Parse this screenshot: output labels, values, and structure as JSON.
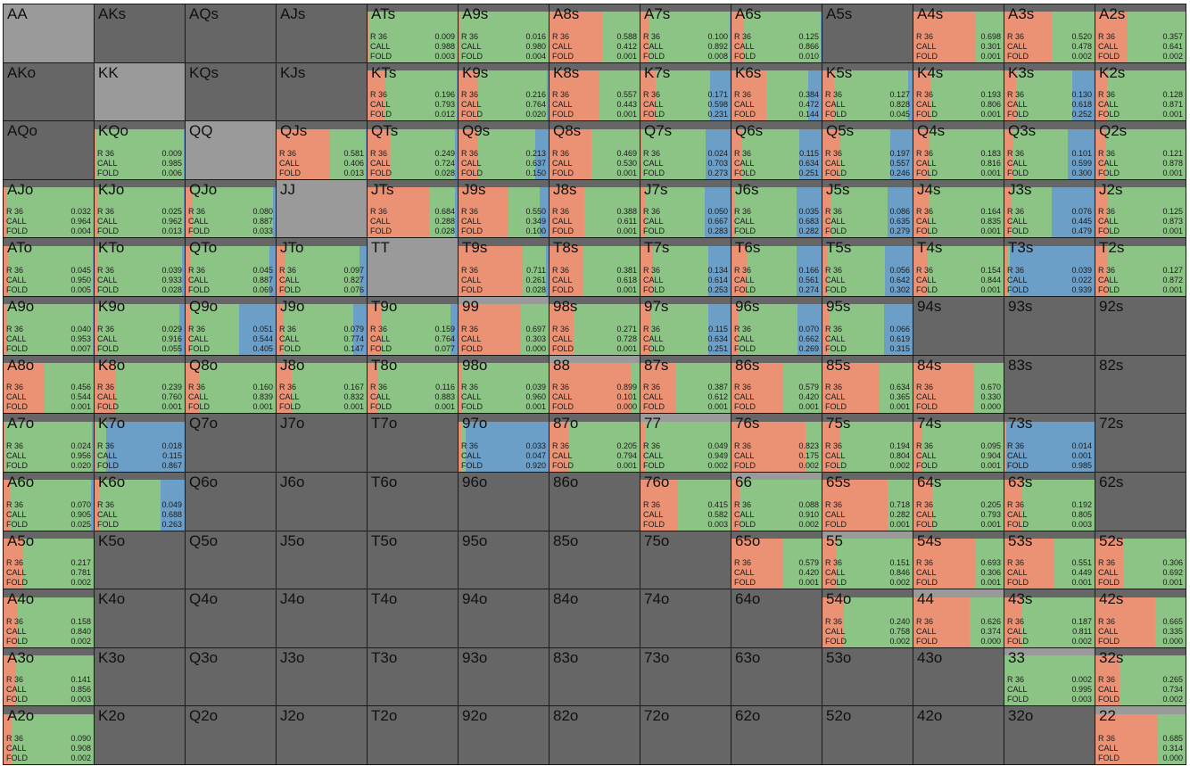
{
  "colors": {
    "raise": "#ec9274",
    "call": "#8cc485",
    "fold": "#6c9fc8",
    "empty": "#666666",
    "pair_empty": "#9a9a9a",
    "grid_line": "#1a1a1a",
    "text": "#111111"
  },
  "action_labels": [
    "R 36",
    "CALL",
    "FOLD"
  ],
  "grid": [
    [
      {
        "hand": "AA"
      },
      {
        "hand": "AKs"
      },
      {
        "hand": "AQs"
      },
      {
        "hand": "AJs"
      },
      {
        "hand": "ATs",
        "r": "0.009",
        "c": "0.988",
        "f": "0.003"
      },
      {
        "hand": "A9s",
        "r": "0.016",
        "c": "0.980",
        "f": "0.004"
      },
      {
        "hand": "A8s",
        "r": "0.588",
        "c": "0.412",
        "f": "0.001"
      },
      {
        "hand": "A7s",
        "r": "0.100",
        "c": "0.892",
        "f": "0.008"
      },
      {
        "hand": "A6s",
        "r": "0.125",
        "c": "0.866",
        "f": "0.010"
      },
      {
        "hand": "A5s"
      },
      {
        "hand": "A4s",
        "r": "0.698",
        "c": "0.301",
        "f": "0.001"
      },
      {
        "hand": "A3s",
        "r": "0.520",
        "c": "0.478",
        "f": "0.002"
      },
      {
        "hand": "A2s",
        "r": "0.357",
        "c": "0.641",
        "f": "0.002"
      }
    ],
    [
      {
        "hand": "AKo"
      },
      {
        "hand": "KK"
      },
      {
        "hand": "KQs"
      },
      {
        "hand": "KJs"
      },
      {
        "hand": "KTs",
        "r": "0.196",
        "c": "0.793",
        "f": "0.012"
      },
      {
        "hand": "K9s",
        "r": "0.216",
        "c": "0.764",
        "f": "0.020"
      },
      {
        "hand": "K8s",
        "r": "0.557",
        "c": "0.443",
        "f": "0.001"
      },
      {
        "hand": "K7s",
        "r": "0.171",
        "c": "0.598",
        "f": "0.231"
      },
      {
        "hand": "K6s",
        "r": "0.384",
        "c": "0.472",
        "f": "0.144"
      },
      {
        "hand": "K5s",
        "r": "0.127",
        "c": "0.828",
        "f": "0.045"
      },
      {
        "hand": "K4s",
        "r": "0.193",
        "c": "0.806",
        "f": "0.001"
      },
      {
        "hand": "K3s",
        "r": "0.130",
        "c": "0.618",
        "f": "0.252"
      },
      {
        "hand": "K2s",
        "r": "0.128",
        "c": "0.871",
        "f": "0.001"
      }
    ],
    [
      {
        "hand": "AQo"
      },
      {
        "hand": "KQo",
        "r": "0.009",
        "c": "0.985",
        "f": "0.006"
      },
      {
        "hand": "QQ"
      },
      {
        "hand": "QJs",
        "r": "0.581",
        "c": "0.406",
        "f": "0.013"
      },
      {
        "hand": "QTs",
        "r": "0.249",
        "c": "0.724",
        "f": "0.028"
      },
      {
        "hand": "Q9s",
        "r": "0.213",
        "c": "0.637",
        "f": "0.150"
      },
      {
        "hand": "Q8s",
        "r": "0.469",
        "c": "0.530",
        "f": "0.001"
      },
      {
        "hand": "Q7s",
        "r": "0.024",
        "c": "0.703",
        "f": "0.273"
      },
      {
        "hand": "Q6s",
        "r": "0.115",
        "c": "0.634",
        "f": "0.251"
      },
      {
        "hand": "Q5s",
        "r": "0.197",
        "c": "0.557",
        "f": "0.246"
      },
      {
        "hand": "Q4s",
        "r": "0.183",
        "c": "0.816",
        "f": "0.001"
      },
      {
        "hand": "Q3s",
        "r": "0.101",
        "c": "0.599",
        "f": "0.300"
      },
      {
        "hand": "Q2s",
        "r": "0.121",
        "c": "0.878",
        "f": "0.001"
      }
    ],
    [
      {
        "hand": "AJo",
        "r": "0.032",
        "c": "0.964",
        "f": "0.004"
      },
      {
        "hand": "KJo",
        "r": "0.025",
        "c": "0.962",
        "f": "0.013"
      },
      {
        "hand": "QJo",
        "r": "0.080",
        "c": "0.887",
        "f": "0.033"
      },
      {
        "hand": "JJ"
      },
      {
        "hand": "JTs",
        "r": "0.684",
        "c": "0.288",
        "f": "0.028"
      },
      {
        "hand": "J9s",
        "r": "0.550",
        "c": "0.349",
        "f": "0.100"
      },
      {
        "hand": "J8s",
        "r": "0.388",
        "c": "0.611",
        "f": "0.001"
      },
      {
        "hand": "J7s",
        "r": "0.050",
        "c": "0.667",
        "f": "0.283"
      },
      {
        "hand": "J6s",
        "r": "0.035",
        "c": "0.683",
        "f": "0.282"
      },
      {
        "hand": "J5s",
        "r": "0.086",
        "c": "0.635",
        "f": "0.279"
      },
      {
        "hand": "J4s",
        "r": "0.164",
        "c": "0.835",
        "f": "0.001"
      },
      {
        "hand": "J3s",
        "r": "0.076",
        "c": "0.445",
        "f": "0.479"
      },
      {
        "hand": "J2s",
        "r": "0.125",
        "c": "0.873",
        "f": "0.001"
      }
    ],
    [
      {
        "hand": "ATo",
        "r": "0.045",
        "c": "0.950",
        "f": "0.005"
      },
      {
        "hand": "KTo",
        "r": "0.039",
        "c": "0.933",
        "f": "0.028"
      },
      {
        "hand": "QTo",
        "r": "0.045",
        "c": "0.887",
        "f": "0.069"
      },
      {
        "hand": "JTo",
        "r": "0.097",
        "c": "0.827",
        "f": "0.076"
      },
      {
        "hand": "TT"
      },
      {
        "hand": "T9s",
        "r": "0.711",
        "c": "0.261",
        "f": "0.028"
      },
      {
        "hand": "T8s",
        "r": "0.381",
        "c": "0.618",
        "f": "0.001"
      },
      {
        "hand": "T7s",
        "r": "0.134",
        "c": "0.614",
        "f": "0.253"
      },
      {
        "hand": "T6s",
        "r": "0.166",
        "c": "0.561",
        "f": "0.274"
      },
      {
        "hand": "T5s",
        "r": "0.056",
        "c": "0.642",
        "f": "0.302"
      },
      {
        "hand": "T4s",
        "r": "0.154",
        "c": "0.844",
        "f": "0.001"
      },
      {
        "hand": "T3s",
        "r": "0.039",
        "c": "0.022",
        "f": "0.939"
      },
      {
        "hand": "T2s",
        "r": "0.127",
        "c": "0.872",
        "f": "0.001"
      }
    ],
    [
      {
        "hand": "A9o",
        "r": "0.040",
        "c": "0.953",
        "f": "0.007"
      },
      {
        "hand": "K9o",
        "r": "0.029",
        "c": "0.916",
        "f": "0.055"
      },
      {
        "hand": "Q9o",
        "r": "0.051",
        "c": "0.544",
        "f": "0.405"
      },
      {
        "hand": "J9o",
        "r": "0.079",
        "c": "0.774",
        "f": "0.147"
      },
      {
        "hand": "T9o",
        "r": "0.159",
        "c": "0.764",
        "f": "0.077"
      },
      {
        "hand": "99",
        "r": "0.697",
        "c": "0.303",
        "f": "0.000"
      },
      {
        "hand": "98s",
        "r": "0.271",
        "c": "0.728",
        "f": "0.001"
      },
      {
        "hand": "97s",
        "r": "0.115",
        "c": "0.634",
        "f": "0.251"
      },
      {
        "hand": "96s",
        "r": "0.070",
        "c": "0.662",
        "f": "0.269"
      },
      {
        "hand": "95s",
        "r": "0.066",
        "c": "0.619",
        "f": "0.315"
      },
      {
        "hand": "94s"
      },
      {
        "hand": "93s"
      },
      {
        "hand": "92s"
      }
    ],
    [
      {
        "hand": "A8o",
        "r": "0.456",
        "c": "0.544",
        "f": "0.001"
      },
      {
        "hand": "K8o",
        "r": "0.239",
        "c": "0.760",
        "f": "0.001"
      },
      {
        "hand": "Q8o",
        "r": "0.160",
        "c": "0.839",
        "f": "0.001"
      },
      {
        "hand": "J8o",
        "r": "0.167",
        "c": "0.832",
        "f": "0.001"
      },
      {
        "hand": "T8o",
        "r": "0.116",
        "c": "0.883",
        "f": "0.001"
      },
      {
        "hand": "98o",
        "r": "0.039",
        "c": "0.960",
        "f": "0.001"
      },
      {
        "hand": "88",
        "r": "0.899",
        "c": "0.101",
        "f": "0.000"
      },
      {
        "hand": "87s",
        "r": "0.387",
        "c": "0.612",
        "f": "0.001"
      },
      {
        "hand": "86s",
        "r": "0.579",
        "c": "0.420",
        "f": "0.001"
      },
      {
        "hand": "85s",
        "r": "0.634",
        "c": "0.365",
        "f": "0.001"
      },
      {
        "hand": "84s",
        "r": "0.670",
        "c": "0.330",
        "f": "0.000"
      },
      {
        "hand": "83s"
      },
      {
        "hand": "82s"
      }
    ],
    [
      {
        "hand": "A7o",
        "r": "0.024",
        "c": "0.956",
        "f": "0.020"
      },
      {
        "hand": "K7o",
        "r": "0.018",
        "c": "0.115",
        "f": "0.867"
      },
      {
        "hand": "Q7o"
      },
      {
        "hand": "J7o"
      },
      {
        "hand": "T7o"
      },
      {
        "hand": "97o",
        "r": "0.033",
        "c": "0.047",
        "f": "0.920"
      },
      {
        "hand": "87o",
        "r": "0.205",
        "c": "0.794",
        "f": "0.001"
      },
      {
        "hand": "77",
        "r": "0.049",
        "c": "0.949",
        "f": "0.002"
      },
      {
        "hand": "76s",
        "r": "0.823",
        "c": "0.175",
        "f": "0.002"
      },
      {
        "hand": "75s",
        "r": "0.194",
        "c": "0.804",
        "f": "0.002"
      },
      {
        "hand": "74s",
        "r": "0.095",
        "c": "0.904",
        "f": "0.001"
      },
      {
        "hand": "73s",
        "r": "0.014",
        "c": "0.001",
        "f": "0.985"
      },
      {
        "hand": "72s"
      }
    ],
    [
      {
        "hand": "A6o",
        "r": "0.070",
        "c": "0.905",
        "f": "0.025"
      },
      {
        "hand": "K6o",
        "r": "0.049",
        "c": "0.688",
        "f": "0.263"
      },
      {
        "hand": "Q6o"
      },
      {
        "hand": "J6o"
      },
      {
        "hand": "T6o"
      },
      {
        "hand": "96o"
      },
      {
        "hand": "86o"
      },
      {
        "hand": "76o",
        "r": "0.415",
        "c": "0.582",
        "f": "0.003"
      },
      {
        "hand": "66",
        "r": "0.088",
        "c": "0.910",
        "f": "0.002"
      },
      {
        "hand": "65s",
        "r": "0.718",
        "c": "0.282",
        "f": "0.001"
      },
      {
        "hand": "64s",
        "r": "0.205",
        "c": "0.793",
        "f": "0.001"
      },
      {
        "hand": "63s",
        "r": "0.192",
        "c": "0.805",
        "f": "0.003"
      },
      {
        "hand": "62s"
      }
    ],
    [
      {
        "hand": "A5o",
        "r": "0.217",
        "c": "0.781",
        "f": "0.002"
      },
      {
        "hand": "K5o"
      },
      {
        "hand": "Q5o"
      },
      {
        "hand": "J5o"
      },
      {
        "hand": "T5o"
      },
      {
        "hand": "95o"
      },
      {
        "hand": "85o"
      },
      {
        "hand": "75o"
      },
      {
        "hand": "65o",
        "r": "0.579",
        "c": "0.420",
        "f": "0.001"
      },
      {
        "hand": "55",
        "r": "0.151",
        "c": "0.846",
        "f": "0.002"
      },
      {
        "hand": "54s",
        "r": "0.693",
        "c": "0.306",
        "f": "0.001"
      },
      {
        "hand": "53s",
        "r": "0.551",
        "c": "0.449",
        "f": "0.001"
      },
      {
        "hand": "52s",
        "r": "0.306",
        "c": "0.692",
        "f": "0.001"
      }
    ],
    [
      {
        "hand": "A4o",
        "r": "0.158",
        "c": "0.840",
        "f": "0.002"
      },
      {
        "hand": "K4o"
      },
      {
        "hand": "Q4o"
      },
      {
        "hand": "J4o"
      },
      {
        "hand": "T4o"
      },
      {
        "hand": "94o"
      },
      {
        "hand": "84o"
      },
      {
        "hand": "74o"
      },
      {
        "hand": "64o"
      },
      {
        "hand": "54o",
        "r": "0.240",
        "c": "0.758",
        "f": "0.002"
      },
      {
        "hand": "44",
        "r": "0.626",
        "c": "0.374",
        "f": "0.000"
      },
      {
        "hand": "43s",
        "r": "0.187",
        "c": "0.811",
        "f": "0.002"
      },
      {
        "hand": "42s",
        "r": "0.665",
        "c": "0.335",
        "f": "0.000"
      }
    ],
    [
      {
        "hand": "A3o",
        "r": "0.141",
        "c": "0.856",
        "f": "0.003"
      },
      {
        "hand": "K3o"
      },
      {
        "hand": "Q3o"
      },
      {
        "hand": "J3o"
      },
      {
        "hand": "T3o"
      },
      {
        "hand": "93o"
      },
      {
        "hand": "83o"
      },
      {
        "hand": "73o"
      },
      {
        "hand": "63o"
      },
      {
        "hand": "53o"
      },
      {
        "hand": "43o"
      },
      {
        "hand": "33",
        "r": "0.002",
        "c": "0.995",
        "f": "0.003"
      },
      {
        "hand": "32s",
        "r": "0.265",
        "c": "0.734",
        "f": "0.002"
      }
    ],
    [
      {
        "hand": "A2o",
        "r": "0.090",
        "c": "0.908",
        "f": "0.002"
      },
      {
        "hand": "K2o"
      },
      {
        "hand": "Q2o"
      },
      {
        "hand": "J2o"
      },
      {
        "hand": "T2o"
      },
      {
        "hand": "92o"
      },
      {
        "hand": "82o"
      },
      {
        "hand": "72o"
      },
      {
        "hand": "62o"
      },
      {
        "hand": "52o"
      },
      {
        "hand": "42o"
      },
      {
        "hand": "32o"
      },
      {
        "hand": "22",
        "r": "0.685",
        "c": "0.314",
        "f": "0.000"
      }
    ]
  ]
}
